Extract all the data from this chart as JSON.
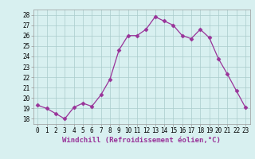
{
  "hours": [
    0,
    1,
    2,
    3,
    4,
    5,
    6,
    7,
    8,
    9,
    10,
    11,
    12,
    13,
    14,
    15,
    16,
    17,
    18,
    19,
    20,
    21,
    22,
    23
  ],
  "values": [
    19.3,
    19.0,
    18.5,
    18.0,
    19.1,
    19.5,
    19.2,
    20.3,
    21.8,
    24.6,
    26.0,
    26.0,
    26.6,
    27.8,
    27.4,
    27.0,
    26.0,
    25.7,
    26.6,
    25.8,
    23.8,
    22.3,
    20.7,
    19.1
  ],
  "line_color": "#993399",
  "marker": "D",
  "markersize": 2.5,
  "linewidth": 0.9,
  "bg_color": "#d8f0f0",
  "grid_color": "#aacccc",
  "xlabel": "Windchill (Refroidissement éolien,°C)",
  "ylim": [
    17.5,
    28.5
  ],
  "yticks": [
    18,
    19,
    20,
    21,
    22,
    23,
    24,
    25,
    26,
    27,
    28
  ],
  "xticks": [
    0,
    1,
    2,
    3,
    4,
    5,
    6,
    7,
    8,
    9,
    10,
    11,
    12,
    13,
    14,
    15,
    16,
    17,
    18,
    19,
    20,
    21,
    22,
    23
  ],
  "tick_fontsize": 5.5,
  "xlabel_fontsize": 6.5,
  "spine_color": "#999999"
}
